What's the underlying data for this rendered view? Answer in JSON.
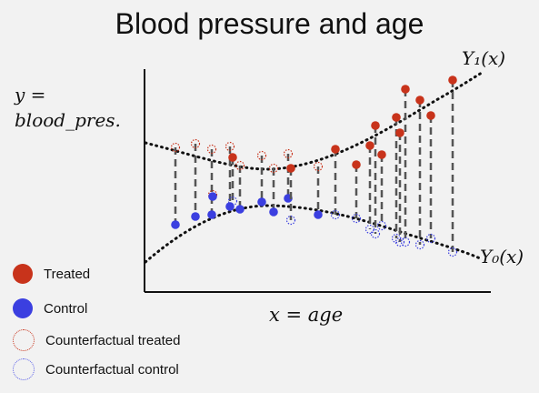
{
  "title": "Blood pressure and age",
  "y_label_line1": "y =",
  "y_label_line2": "blood_pres.",
  "x_label": "x = age",
  "curve_y1_label": "Y₁(x)",
  "curve_y0_label": "Y₀(x)",
  "legend": {
    "treated": "Treated",
    "control": "Control",
    "cf_treated": "Counterfactual treated",
    "cf_control": "Counterfactual control"
  },
  "colors": {
    "treated": "#c8331b",
    "control": "#3b3fe0",
    "axis": "#111111",
    "connector": "#555555"
  }
}
